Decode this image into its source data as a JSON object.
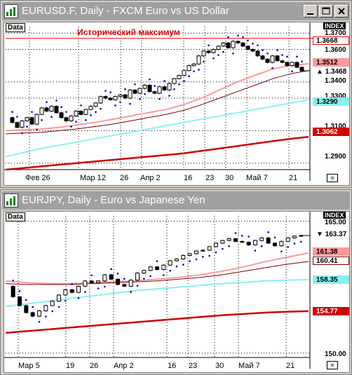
{
  "windows": [
    {
      "title": "EURUSD.F, Daily - FXCM Euro vs US Dollar",
      "data_tag": "Data",
      "annotation": "Исторический максимум",
      "index_label": "INDEX",
      "y_ticks": [
        "1.3700",
        "1.3600",
        "1.3400",
        "1.3300",
        "1.3100",
        "1.2900"
      ],
      "badges": [
        {
          "text": "1.3668",
          "bg": "#ffffff",
          "fg": "#000000",
          "border": "#ff0000"
        },
        {
          "text": "1.3512",
          "bg": "#ff9999",
          "fg": "#000000",
          "border": "#ff9999"
        },
        {
          "text": "1.3468",
          "bg": "#ffffff",
          "fg": "#000000",
          "border": "#ffffff",
          "marker": "▲"
        },
        {
          "text": "1.3290",
          "bg": "#88f0f0",
          "fg": "#000000",
          "border": "#88f0f0"
        },
        {
          "text": "1.3062",
          "bg": "#d00000",
          "fg": "#ffffff",
          "border": "#d00000"
        }
      ],
      "x_labels": [
        "Фев 26",
        "Мар 12",
        "26",
        "Апр 2",
        "16",
        "23",
        "30",
        "Май 7",
        "21"
      ],
      "chart_data": {
        "type": "candlestick",
        "instrument": "EURUSD.F",
        "timeframe": "Daily",
        "ylim": [
          1.286,
          1.374
        ],
        "resistance_level": 1.3668,
        "last_price": 1.3468,
        "open": [
          1.318,
          1.315,
          1.312,
          1.316,
          1.318,
          1.314,
          1.32,
          1.324,
          1.322,
          1.325,
          1.321,
          1.318,
          1.316,
          1.319,
          1.322,
          1.32,
          1.323,
          1.325,
          1.327,
          1.331,
          1.33,
          1.329,
          1.331,
          1.332,
          1.33,
          1.335,
          1.333,
          1.336,
          1.338,
          1.334,
          1.333,
          1.337,
          1.335,
          1.339,
          1.342,
          1.344,
          1.347,
          1.35,
          1.351,
          1.356,
          1.359,
          1.358,
          1.36,
          1.362,
          1.364,
          1.361,
          1.365,
          1.364,
          1.362,
          1.36,
          1.359,
          1.356,
          1.354,
          1.352,
          1.356,
          1.353,
          1.352,
          1.35,
          1.352,
          1.349
        ],
        "close": [
          1.315,
          1.312,
          1.316,
          1.318,
          1.314,
          1.32,
          1.324,
          1.322,
          1.325,
          1.321,
          1.318,
          1.316,
          1.319,
          1.322,
          1.32,
          1.323,
          1.325,
          1.327,
          1.331,
          1.33,
          1.329,
          1.331,
          1.332,
          1.33,
          1.335,
          1.333,
          1.336,
          1.338,
          1.334,
          1.333,
          1.337,
          1.335,
          1.339,
          1.342,
          1.344,
          1.347,
          1.35,
          1.351,
          1.356,
          1.359,
          1.358,
          1.36,
          1.362,
          1.364,
          1.361,
          1.365,
          1.364,
          1.362,
          1.36,
          1.359,
          1.356,
          1.354,
          1.352,
          1.356,
          1.353,
          1.352,
          1.35,
          1.352,
          1.349,
          1.3468
        ],
        "series": [
          {
            "name": "",
            "color": "#ff0000",
            "values": [
              1.3668,
              1.3668
            ]
          },
          {
            "name": "",
            "color": "#ff9999",
            "values": [
              1.31,
              1.3105,
              1.311,
              1.312,
              1.3135,
              1.315,
              1.317,
              1.319,
              1.321,
              1.323,
              1.326,
              1.33,
              1.335,
              1.34,
              1.344,
              1.348,
              1.35,
              1.3512
            ]
          },
          {
            "name": "",
            "color": "#800000",
            "values": [
              1.308,
              1.3085,
              1.309,
              1.31,
              1.311,
              1.3125,
              1.314,
              1.316,
              1.318,
              1.32,
              1.3225,
              1.326,
              1.33,
              1.334,
              1.338,
              1.342,
              1.345,
              1.347
            ]
          },
          {
            "name": "",
            "color": "#88f0f0",
            "values": [
              1.294,
              1.2965,
              1.299,
              1.301,
              1.303,
              1.305,
              1.307,
              1.309,
              1.311,
              1.313,
              1.315,
              1.317,
              1.319,
              1.321,
              1.323,
              1.325,
              1.327,
              1.329
            ]
          },
          {
            "name": "",
            "color": "#d00000",
            "values": [
              1.286,
              1.287,
              1.288,
              1.289,
              1.29,
              1.291,
              1.292,
              1.293,
              1.294,
              1.295,
              1.296,
              1.2975,
              1.299,
              1.3005,
              1.302,
              1.3035,
              1.305,
              1.3062
            ]
          }
        ]
      }
    },
    {
      "title": "EURJPY, Daily - Euro vs Japanese Yen",
      "data_tag": "Data",
      "index_label": "INDEX",
      "y_ticks": [
        "165.00",
        "150.00"
      ],
      "badges": [
        {
          "text": "163.37",
          "bg": "#ffffff",
          "fg": "#000000",
          "border": "#ffffff",
          "marker": "▼"
        },
        {
          "text": "161.38",
          "bg": "#ff9999",
          "fg": "#000000",
          "border": "#ff9999"
        },
        {
          "text": "160.41",
          "bg": "#ffffff",
          "fg": "#000000",
          "border": "#800000"
        },
        {
          "text": "158.35",
          "bg": "#88f0f0",
          "fg": "#000000",
          "border": "#88f0f0"
        },
        {
          "text": "154.77",
          "bg": "#d00000",
          "fg": "#ffffff",
          "border": "#d00000"
        }
      ],
      "x_labels": [
        "Мар 5",
        "19",
        "26",
        "Апр 2",
        "16",
        "23",
        "30",
        "Май 7",
        "21"
      ],
      "chart_data": {
        "type": "candlestick",
        "instrument": "EURJPY",
        "timeframe": "Daily",
        "ylim": [
          149.5,
          165.6
        ],
        "last_price": 163.37,
        "open": [
          157.6,
          156.4,
          155.4,
          154.6,
          154.2,
          154.8,
          155.4,
          155.9,
          156.6,
          157.2,
          156.9,
          157.6,
          158.2,
          158.0,
          158.2,
          158.9,
          158.4,
          157.8,
          157.6,
          158.3,
          159.1,
          159.4,
          159.8,
          159.5,
          160.0,
          160.5,
          160.7,
          161.1,
          161.3,
          161.6,
          161.7,
          162.1,
          162.5,
          162.8,
          163.0,
          162.7,
          162.6,
          162.3,
          162.8,
          163.1,
          162.5,
          162.2,
          162.7,
          163.1,
          163.3
        ],
        "close": [
          156.4,
          155.4,
          154.6,
          154.2,
          154.8,
          155.4,
          155.9,
          156.6,
          157.2,
          156.9,
          157.6,
          158.2,
          158.0,
          158.2,
          158.9,
          158.4,
          157.8,
          157.6,
          158.3,
          159.1,
          159.4,
          159.8,
          159.5,
          160.0,
          160.5,
          160.7,
          161.1,
          161.3,
          161.6,
          161.7,
          162.1,
          162.5,
          162.8,
          163.0,
          162.7,
          162.6,
          162.3,
          162.8,
          163.1,
          162.5,
          162.2,
          162.7,
          163.1,
          163.3,
          163.37
        ],
        "series": [
          {
            "name": "",
            "color": "#ff9999",
            "values": [
              158.2,
              158.0,
              157.9,
              157.9,
              158.0,
              158.1,
              158.2,
              158.4,
              158.6,
              158.9,
              159.3,
              159.8,
              160.4,
              160.9,
              161.38
            ]
          },
          {
            "name": "",
            "color": "#800000",
            "values": [
              157.9,
              157.8,
              157.8,
              157.8,
              157.9,
              158.0,
              158.1,
              158.2,
              158.4,
              158.6,
              158.9,
              159.3,
              159.7,
              160.1,
              160.41
            ]
          },
          {
            "name": "",
            "color": "#88f0f0",
            "values": [
              155.3,
              155.6,
              155.9,
              156.2,
              156.5,
              156.8,
              157.1,
              157.3,
              157.5,
              157.7,
              157.9,
              158.05,
              158.2,
              158.3,
              158.35
            ]
          },
          {
            "name": "",
            "color": "#d00000",
            "values": [
              152.3,
              152.5,
              152.7,
              152.9,
              153.1,
              153.3,
              153.5,
              153.7,
              153.9,
              154.1,
              154.3,
              154.45,
              154.6,
              154.7,
              154.77
            ]
          }
        ]
      }
    }
  ]
}
